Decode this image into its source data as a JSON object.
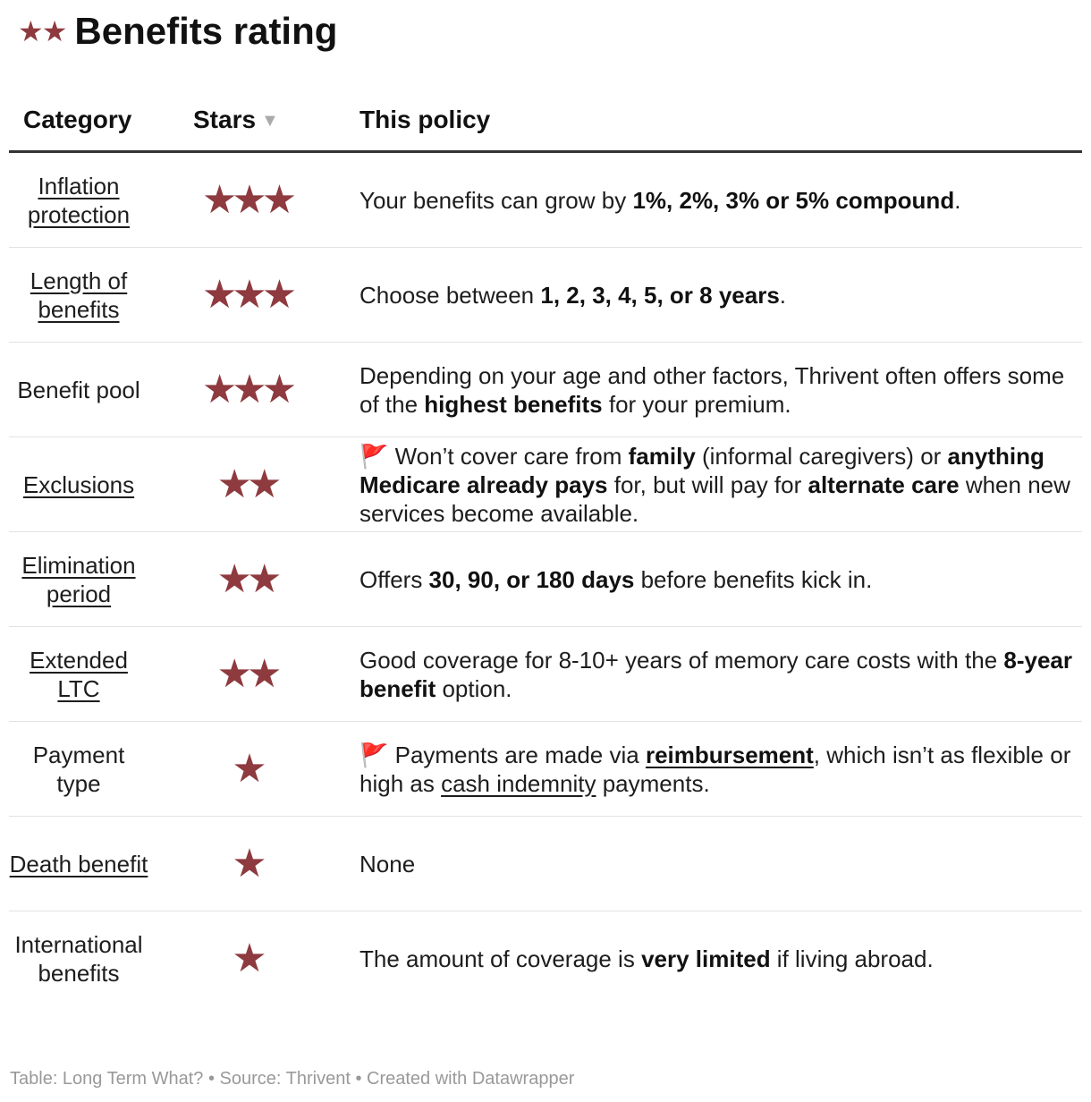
{
  "title": {
    "stars": "★★",
    "text": "Benefits rating"
  },
  "headers": {
    "category": "Category",
    "stars": "Stars",
    "sort_arrow": "▼",
    "policy": "This policy"
  },
  "colors": {
    "star": "#8e3a3f",
    "header_rule": "#333333",
    "footer": "#999999"
  },
  "rows": [
    {
      "category": "Inflation protection",
      "category_link": true,
      "stars": "★★★",
      "policy": [
        {
          "t": "Your benefits can grow by "
        },
        {
          "t": "1%, 2%, 3% or 5% compound",
          "b": true
        },
        {
          "t": "."
        }
      ]
    },
    {
      "category": "Length of benefits",
      "category_link": true,
      "stars": "★★★",
      "policy": [
        {
          "t": "Choose between "
        },
        {
          "t": "1, 2, 3, 4, 5, or 8 years",
          "b": true
        },
        {
          "t": "."
        }
      ]
    },
    {
      "category": "Benefit pool",
      "category_link": false,
      "stars": "★★★",
      "policy": [
        {
          "t": "Depending on your age and other factors, Thrivent often offers some of the "
        },
        {
          "t": "highest benefits",
          "b": true
        },
        {
          "t": " for your premium."
        }
      ]
    },
    {
      "category": "Exclusions",
      "category_link": true,
      "stars": "★★",
      "policy": [
        {
          "t": "🚩 Won’t cover care from "
        },
        {
          "t": "family",
          "b": true
        },
        {
          "t": " (informal caregivers) or "
        },
        {
          "t": "anything Medicare already pays",
          "b": true
        },
        {
          "t": " for, but will pay for "
        },
        {
          "t": "alternate care",
          "b": true
        },
        {
          "t": " when new services become available."
        }
      ]
    },
    {
      "category": "Elimination period",
      "category_link": true,
      "stars": "★★",
      "policy": [
        {
          "t": "Offers "
        },
        {
          "t": "30, 90, or 180 days",
          "b": true
        },
        {
          "t": " before benefits kick in."
        }
      ]
    },
    {
      "category": "Extended LTC",
      "category_link": true,
      "stars": "★★",
      "policy": [
        {
          "t": "Good coverage for 8-10+ years of memory care costs with the "
        },
        {
          "t": "8-year benefit",
          "b": true
        },
        {
          "t": " option."
        }
      ]
    },
    {
      "category": "Payment type",
      "category_link": false,
      "stars": "★",
      "policy": [
        {
          "t": "🚩 Payments are made via "
        },
        {
          "t": "reimbursement",
          "b": true,
          "u": true
        },
        {
          "t": ", which isn’t as flexible or high as "
        },
        {
          "t": "cash indemnity",
          "u": true
        },
        {
          "t": " payments."
        }
      ]
    },
    {
      "category": "Death benefit",
      "category_link": true,
      "stars": "★",
      "policy": [
        {
          "t": "None"
        }
      ]
    },
    {
      "category": "International benefits",
      "category_link": false,
      "stars": "★",
      "policy": [
        {
          "t": "The amount of coverage is "
        },
        {
          "t": "very limited",
          "b": true
        },
        {
          "t": " if living abroad."
        }
      ]
    }
  ],
  "footer": "Table: Long Term What? • Source: Thrivent • Created with Datawrapper"
}
